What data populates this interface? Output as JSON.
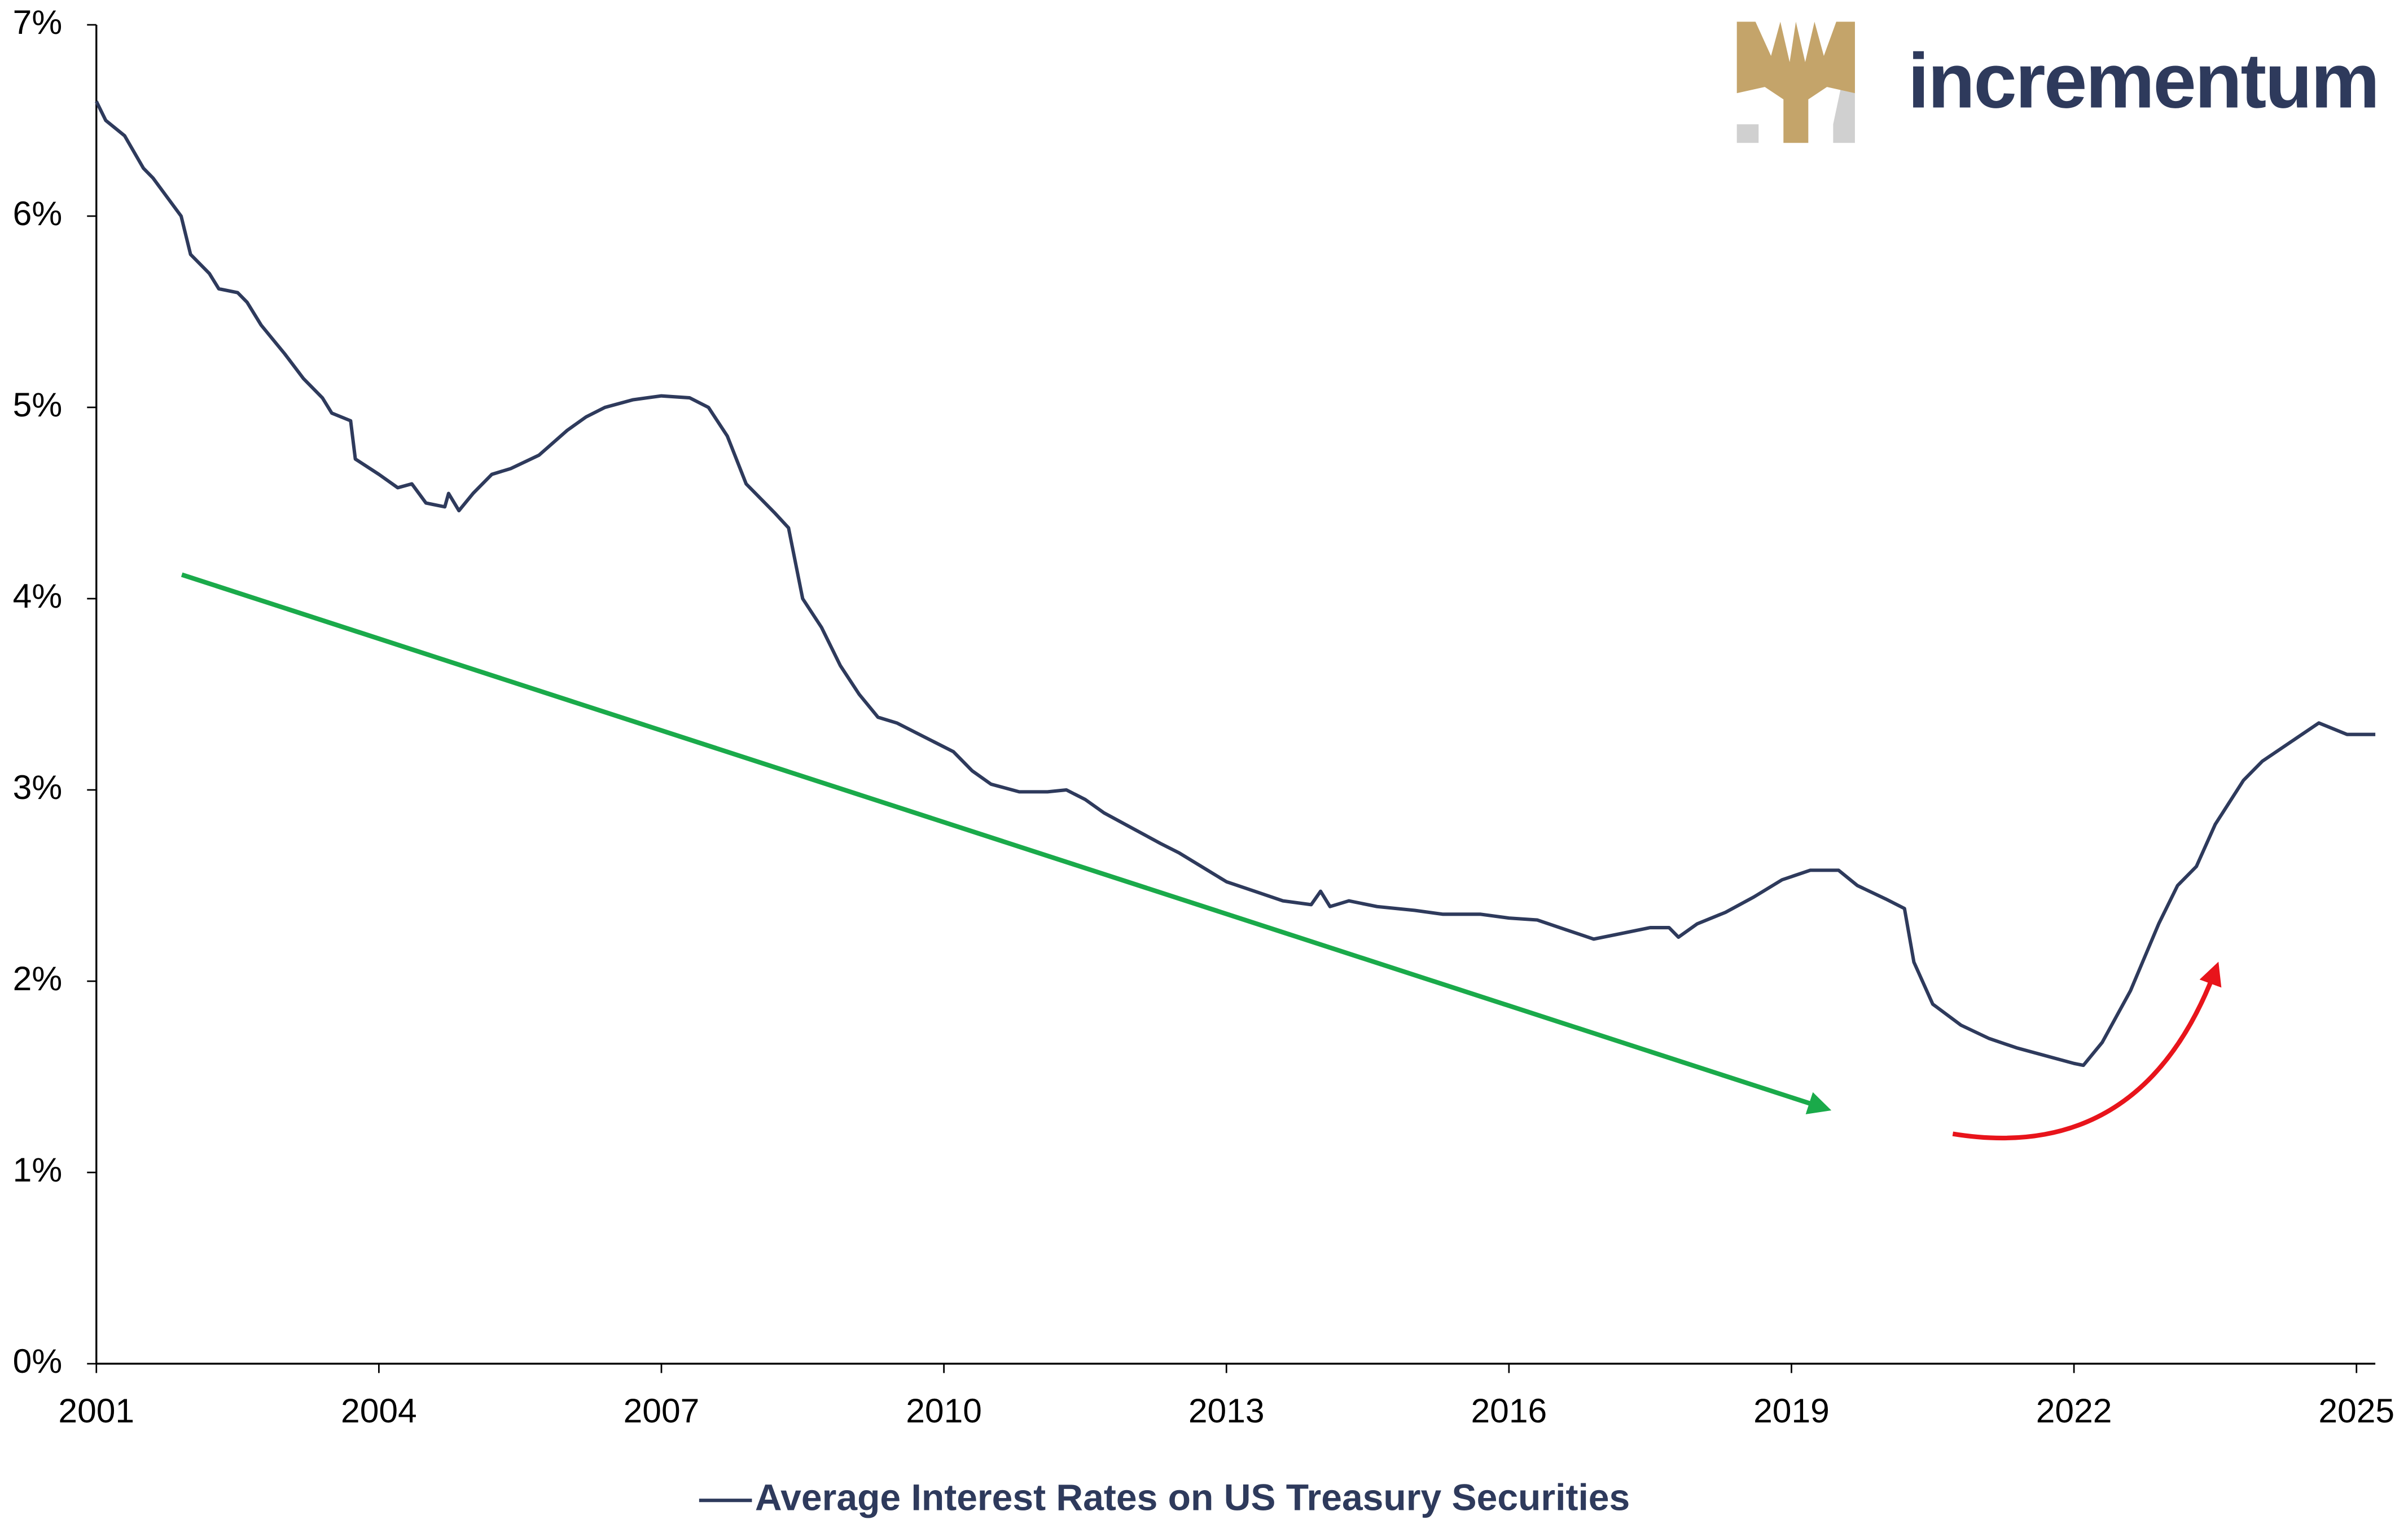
{
  "chart_data": {
    "type": "line",
    "logo": "incrementum",
    "x": [
      2001.0,
      2001.1,
      2001.3,
      2001.5,
      2001.6,
      2001.75,
      2001.9,
      2002.0,
      2002.2,
      2002.3,
      2002.5,
      2002.6,
      2002.75,
      2003.0,
      2003.2,
      2003.4,
      2003.5,
      2003.7,
      2003.75,
      2004.0,
      2004.2,
      2004.35,
      2004.5,
      2004.7,
      2004.74,
      2004.85,
      2005.0,
      2005.2,
      2005.4,
      2005.7,
      2006.0,
      2006.2,
      2006.4,
      2006.7,
      2007.0,
      2007.3,
      2007.5,
      2007.7,
      2007.9,
      2008.2,
      2008.35,
      2008.5,
      2008.7,
      2008.9,
      2009.1,
      2009.3,
      2009.5,
      2009.7,
      2009.9,
      2010.1,
      2010.3,
      2010.5,
      2010.8,
      2011.1,
      2011.3,
      2011.5,
      2011.7,
      2012.0,
      2012.3,
      2012.5,
      2012.8,
      2013.0,
      2013.3,
      2013.6,
      2013.9,
      2014.0,
      2014.1,
      2014.3,
      2014.6,
      2015.0,
      2015.3,
      2015.7,
      2016.0,
      2016.3,
      2016.6,
      2016.9,
      2017.2,
      2017.5,
      2017.7,
      2017.8,
      2018.0,
      2018.3,
      2018.6,
      2018.9,
      2019.2,
      2019.5,
      2019.7,
      2020.0,
      2020.2,
      2020.3,
      2020.5,
      2020.8,
      2021.1,
      2021.4,
      2021.7,
      2022.0,
      2022.1,
      2022.3,
      2022.6,
      2022.9,
      2023.1,
      2023.3,
      2023.5,
      2023.8,
      2024.0,
      2024.3,
      2024.6,
      2024.9,
      2025.2
    ],
    "series": [
      {
        "name": "Average Interest Rates on US Treasury Securities",
        "color": "#2e3a5c",
        "values": [
          6.6,
          6.5,
          6.42,
          6.25,
          6.2,
          6.1,
          6.0,
          5.8,
          5.7,
          5.62,
          5.6,
          5.55,
          5.43,
          5.28,
          5.15,
          5.05,
          4.97,
          4.93,
          4.73,
          4.65,
          4.58,
          4.6,
          4.5,
          4.48,
          4.55,
          4.46,
          4.55,
          4.65,
          4.68,
          4.75,
          4.88,
          4.95,
          5.0,
          5.04,
          5.06,
          5.05,
          5.0,
          4.85,
          4.6,
          4.45,
          4.37,
          4.0,
          3.85,
          3.65,
          3.5,
          3.38,
          3.35,
          3.3,
          3.25,
          3.2,
          3.1,
          3.03,
          2.99,
          2.99,
          3.0,
          2.95,
          2.88,
          2.8,
          2.72,
          2.67,
          2.58,
          2.52,
          2.47,
          2.42,
          2.4,
          2.47,
          2.39,
          2.42,
          2.39,
          2.37,
          2.35,
          2.35,
          2.33,
          2.32,
          2.27,
          2.22,
          2.25,
          2.28,
          2.28,
          2.23,
          2.3,
          2.36,
          2.44,
          2.53,
          2.58,
          2.58,
          2.5,
          2.43,
          2.38,
          2.1,
          1.88,
          1.77,
          1.7,
          1.65,
          1.61,
          1.57,
          1.56,
          1.68,
          1.95,
          2.3,
          2.5,
          2.6,
          2.82,
          3.05,
          3.15,
          3.25,
          3.35,
          3.29,
          3.29
        ]
      }
    ],
    "xlim": [
      2001,
      2025.2
    ],
    "xticks": [
      2001,
      2004,
      2007,
      2010,
      2013,
      2016,
      2019,
      2022,
      2025
    ],
    "ylim": [
      0,
      7
    ],
    "yticks": [
      {
        "value": 0,
        "label": "0%"
      },
      {
        "value": 1,
        "label": "1%"
      },
      {
        "value": 2,
        "label": "2%"
      },
      {
        "value": 3,
        "label": "3%"
      },
      {
        "value": 4,
        "label": "4%"
      },
      {
        "value": 5,
        "label": "5%"
      },
      {
        "value": 6,
        "label": "6%"
      },
      {
        "value": 7,
        "label": "7%"
      }
    ],
    "grid": false
  }
}
